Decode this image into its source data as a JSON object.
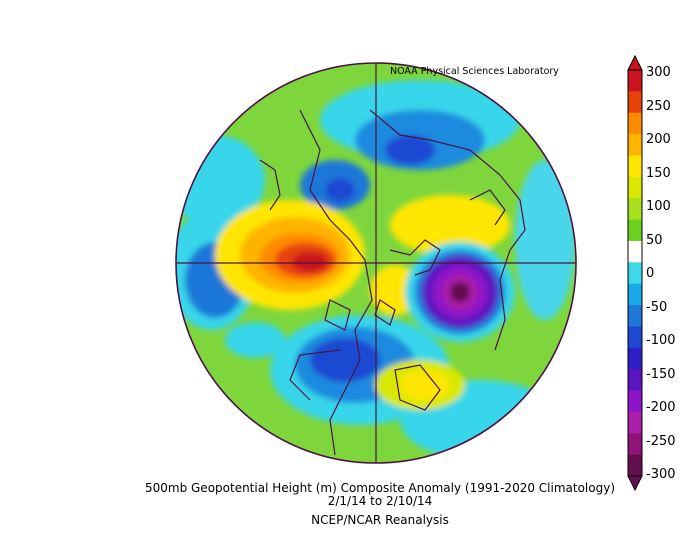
{
  "credit": "NOAA Physical Sciences Laboratory",
  "caption": {
    "title": "500mb Geopotential Height (m) Composite Anomaly (1991-2020 Climatology)",
    "dates": "2/1/14   to 2/10/14",
    "source": "NCEP/NCAR Reanalysis"
  },
  "colorbar": {
    "ticks": [
      "300",
      "250",
      "200",
      "150",
      "100",
      "50",
      "0",
      "-50",
      "-100",
      "-150",
      "-200",
      "-250",
      "-300"
    ],
    "colors": [
      "#c8141e",
      "#e6420a",
      "#ff8a00",
      "#ffb400",
      "#ffe600",
      "#d8e800",
      "#a8e01e",
      "#6ad21e",
      "#ffffff",
      "#3ed8e8",
      "#18a8e6",
      "#1e78d8",
      "#1e48d2",
      "#2e1ec8",
      "#5a14c0",
      "#8e14c8",
      "#aa1ea8",
      "#8e1478",
      "#64104e"
    ]
  }
}
